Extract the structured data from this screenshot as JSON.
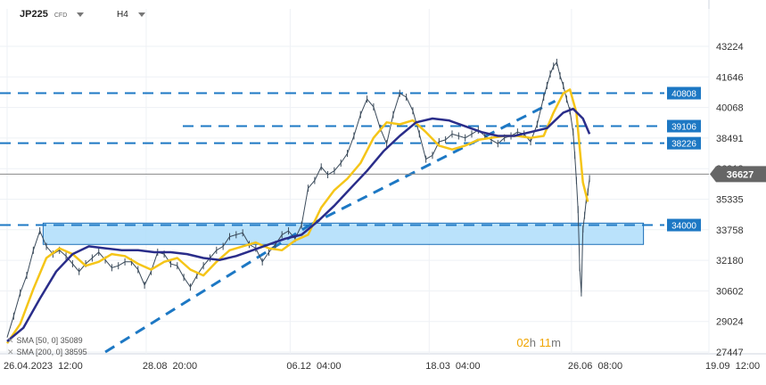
{
  "header": {
    "symbol": "JP225",
    "instrument_type": "CFD",
    "timeframe": "H4"
  },
  "indicators": [
    {
      "label": "SMA [50, 0]",
      "value": "35089",
      "color": "#f5c518"
    },
    {
      "label": "SMA [200, 0]",
      "value": "38595",
      "color": "#2a2d8a"
    }
  ],
  "timer": {
    "hours": "02",
    "h_unit": "h",
    "minutes": "11",
    "m_unit": "m"
  },
  "current_price": {
    "label": "36627",
    "value": 36627,
    "color": "#666666"
  },
  "chart_data": {
    "type": "line",
    "title": "",
    "x_tick_labels": [
      "26.04.2023  12:00",
      "28.08  20:00",
      "06.12  04:00",
      "18.03  04:00",
      "26.06  08:00",
      "19.09  12:00"
    ],
    "x_tick_values": [
      0,
      85,
      173,
      258,
      345,
      429
    ],
    "y_tick_labels": [
      "43224",
      "41646",
      "40068",
      "38491",
      "36913",
      "35335",
      "33758",
      "32180",
      "30602",
      "29024",
      "27447"
    ],
    "ylim": [
      27447,
      43224
    ],
    "grid": true,
    "price": {
      "x": [
        0,
        4,
        8,
        12,
        16,
        20,
        24,
        28,
        32,
        36,
        40,
        44,
        48,
        52,
        56,
        60,
        64,
        68,
        72,
        76,
        80,
        84,
        88,
        92,
        96,
        100,
        104,
        108,
        112,
        116,
        120,
        124,
        128,
        132,
        136,
        140,
        144,
        148,
        152,
        156,
        160,
        164,
        168,
        172,
        176,
        180,
        184,
        188,
        192,
        196,
        200,
        204,
        208,
        212,
        216,
        220,
        224,
        228,
        232,
        236,
        240,
        244,
        248,
        252,
        256,
        260,
        264,
        268,
        272,
        276,
        280,
        284,
        288,
        292,
        296,
        300,
        304,
        308,
        312,
        316,
        320,
        324,
        328,
        330,
        332,
        334,
        336,
        338,
        340,
        342,
        344,
        346,
        347,
        348,
        349,
        350,
        351,
        352,
        353,
        354,
        355,
        356
      ],
      "y": [
        28200,
        29300,
        30500,
        31400,
        32700,
        33700,
        32900,
        32500,
        32700,
        32400,
        32000,
        31600,
        32000,
        32300,
        32600,
        32200,
        31800,
        31900,
        32100,
        32100,
        31700,
        30900,
        31600,
        32600,
        32500,
        32000,
        31900,
        31300,
        30800,
        31400,
        31900,
        32300,
        32700,
        32900,
        33400,
        33500,
        33600,
        33000,
        32800,
        32100,
        32600,
        33000,
        33500,
        33700,
        33300,
        34000,
        35900,
        36300,
        37000,
        36600,
        36800,
        37200,
        37700,
        38600,
        39700,
        40500,
        40100,
        39000,
        38200,
        39700,
        40800,
        40600,
        39900,
        38700,
        37400,
        37600,
        38300,
        38400,
        38700,
        38600,
        38500,
        38700,
        38900,
        38600,
        38400,
        38200,
        38500,
        38600,
        38800,
        38700,
        38300,
        39200,
        40600,
        41200,
        41800,
        42200,
        42400,
        41700,
        41200,
        40500,
        39900,
        38800,
        37600,
        36300,
        34800,
        31800,
        30500,
        33800,
        34500,
        35300,
        35700,
        36400
      ]
    },
    "series": [
      {
        "name": "SMA [50, 0]",
        "x": [
          0,
          8,
          16,
          24,
          32,
          40,
          48,
          56,
          64,
          72,
          80,
          88,
          96,
          104,
          112,
          120,
          128,
          136,
          144,
          152,
          160,
          168,
          176,
          184,
          192,
          200,
          208,
          216,
          224,
          232,
          240,
          248,
          256,
          264,
          272,
          280,
          288,
          296,
          304,
          312,
          320,
          328,
          334,
          340,
          344,
          348,
          352,
          355
        ],
        "y": [
          27900,
          28900,
          30700,
          32300,
          32800,
          32500,
          31900,
          32100,
          32500,
          32400,
          32000,
          31700,
          32100,
          32300,
          31700,
          31400,
          32100,
          32700,
          32900,
          33100,
          32800,
          32700,
          33200,
          33500,
          34900,
          35800,
          36400,
          37200,
          38500,
          39300,
          39200,
          39400,
          38800,
          38100,
          37900,
          38100,
          38400,
          38500,
          38600,
          38600,
          38500,
          38600,
          39800,
          40800,
          41000,
          39800,
          36200,
          35200
        ]
      },
      {
        "name": "SMA [200, 0]",
        "x": [
          0,
          10,
          20,
          30,
          40,
          50,
          60,
          70,
          80,
          90,
          100,
          110,
          120,
          130,
          140,
          150,
          160,
          170,
          180,
          190,
          200,
          210,
          220,
          230,
          240,
          250,
          260,
          270,
          280,
          290,
          300,
          310,
          320,
          330,
          340,
          346,
          352,
          356
        ],
        "y": [
          28000,
          28700,
          30200,
          31600,
          32500,
          32900,
          32800,
          32700,
          32700,
          32600,
          32600,
          32500,
          32300,
          32200,
          32400,
          32700,
          33000,
          33300,
          33500,
          34200,
          35000,
          35900,
          36800,
          37800,
          38600,
          39300,
          39500,
          39400,
          39100,
          38800,
          38600,
          38600,
          38800,
          39000,
          39800,
          40000,
          39500,
          38700
        ]
      }
    ],
    "horizontal_levels": [
      {
        "label": "40808",
        "value": 40808
      },
      {
        "label": "39106",
        "value": 39106
      },
      {
        "label": "38226",
        "value": 38226
      },
      {
        "label": "34000",
        "value": 34000
      }
    ],
    "support_zone": {
      "from_x": 22,
      "to_x": 389,
      "y_low": 33000,
      "y_high": 34100
    },
    "trendlines": [
      {
        "x": [
          60,
          185
        ],
        "y": [
          27447,
          34000
        ]
      },
      {
        "x": [
          185,
          335
        ],
        "y": [
          34000,
          40400
        ]
      }
    ]
  }
}
